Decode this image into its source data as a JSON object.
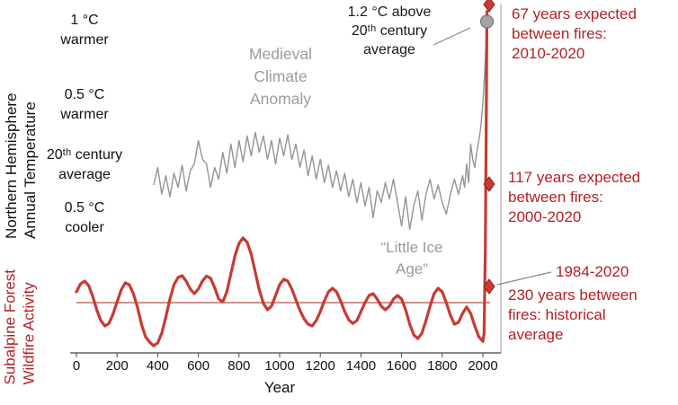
{
  "chart_data": {
    "type": "line",
    "title": "",
    "xlabel": "Year",
    "x_ticks": [
      0,
      200,
      400,
      600,
      800,
      1000,
      1200,
      1400,
      1600,
      1800,
      2000
    ],
    "x_range": [
      0,
      2035
    ],
    "colors": {
      "temperature_line": "#949494",
      "wildfire_line": "#c63b32",
      "red_text": "#b42025",
      "gray_text": "#9b9b9b",
      "axis": "#444444",
      "mean_line": "#b5524c"
    },
    "temperature": {
      "label": "Northern Hemisphere\nAnnual Temperature",
      "color": "#949494",
      "axis_labels": [
        {
          "text": "1 °C\nwarmer",
          "value": 1
        },
        {
          "text": "0.5 °C\nwarmer",
          "value": 0.5
        },
        {
          "text": "20ᵗʰ century\naverage",
          "value": 0
        },
        {
          "text": "0.5 °C\ncooler",
          "value": -0.5
        }
      ],
      "x": [
        380,
        400,
        420,
        440,
        460,
        480,
        500,
        520,
        540,
        560,
        580,
        600,
        620,
        640,
        660,
        680,
        700,
        720,
        740,
        760,
        780,
        800,
        820,
        840,
        860,
        880,
        900,
        920,
        940,
        960,
        980,
        1000,
        1020,
        1040,
        1060,
        1080,
        1100,
        1120,
        1140,
        1160,
        1180,
        1200,
        1220,
        1240,
        1260,
        1280,
        1300,
        1320,
        1340,
        1360,
        1380,
        1400,
        1420,
        1440,
        1460,
        1480,
        1500,
        1520,
        1540,
        1560,
        1580,
        1600,
        1620,
        1640,
        1660,
        1680,
        1700,
        1720,
        1740,
        1760,
        1780,
        1800,
        1820,
        1840,
        1860,
        1880,
        1900,
        1910,
        1920,
        1930,
        1940,
        1950,
        1960,
        1970,
        1980,
        1990,
        2000,
        2010,
        2020
      ],
      "y": [
        -0.2,
        -0.05,
        -0.28,
        -0.12,
        -0.3,
        -0.1,
        -0.22,
        -0.03,
        -0.25,
        -0.08,
        -0.02,
        0.18,
        0.02,
        -0.02,
        -0.22,
        -0.05,
        -0.15,
        0.08,
        -0.1,
        0.15,
        -0.05,
        0.18,
        0.0,
        0.22,
        0.05,
        0.25,
        0.08,
        0.22,
        0.02,
        0.18,
        -0.02,
        0.2,
        0.05,
        0.23,
        0.02,
        0.15,
        -0.05,
        0.1,
        -0.12,
        0.05,
        -0.15,
        0.02,
        -0.18,
        -0.03,
        -0.22,
        -0.08,
        -0.25,
        -0.1,
        -0.3,
        -0.15,
        -0.35,
        -0.18,
        -0.38,
        -0.22,
        -0.48,
        -0.25,
        -0.35,
        -0.18,
        -0.32,
        -0.15,
        -0.35,
        -0.55,
        -0.3,
        -0.58,
        -0.38,
        -0.25,
        -0.5,
        -0.28,
        -0.15,
        -0.32,
        -0.2,
        -0.35,
        -0.45,
        -0.28,
        -0.15,
        -0.28,
        -0.12,
        -0.22,
        -0.02,
        -0.18,
        0.15,
        0.02,
        -0.05,
        0.08,
        0.18,
        0.3,
        0.5,
        0.8,
        1.2
      ],
      "endpoint": {
        "year": 2020,
        "value": 1.2,
        "label": "1.2 °C above\n20ᵗʰ century\naverage"
      }
    },
    "wildfire": {
      "label": "Subalpine Forest\nWildfire Activity",
      "color": "#c63b32",
      "mean_line": {
        "value": 0,
        "meaning": "historical average fire activity"
      },
      "x": [
        0,
        20,
        40,
        60,
        80,
        100,
        120,
        140,
        160,
        180,
        200,
        220,
        240,
        260,
        280,
        300,
        320,
        340,
        360,
        380,
        400,
        420,
        440,
        460,
        480,
        500,
        520,
        540,
        560,
        580,
        600,
        620,
        640,
        660,
        680,
        700,
        720,
        740,
        760,
        780,
        800,
        820,
        840,
        860,
        880,
        900,
        920,
        940,
        960,
        980,
        1000,
        1020,
        1040,
        1060,
        1080,
        1100,
        1120,
        1140,
        1160,
        1180,
        1200,
        1220,
        1240,
        1260,
        1280,
        1300,
        1320,
        1340,
        1360,
        1380,
        1400,
        1420,
        1440,
        1460,
        1480,
        1500,
        1520,
        1540,
        1560,
        1580,
        1600,
        1620,
        1640,
        1660,
        1680,
        1700,
        1720,
        1740,
        1760,
        1780,
        1800,
        1820,
        1840,
        1860,
        1880,
        1900,
        1920,
        1940,
        1960,
        1980,
        2000,
        2006,
        2012,
        2016,
        2020
      ],
      "y": [
        0.3,
        0.52,
        0.6,
        0.48,
        0.18,
        -0.2,
        -0.5,
        -0.65,
        -0.58,
        -0.32,
        0.02,
        0.35,
        0.55,
        0.5,
        0.25,
        -0.12,
        -0.6,
        -0.95,
        -1.1,
        -1.2,
        -1.12,
        -0.85,
        -0.4,
        0.1,
        0.5,
        0.7,
        0.75,
        0.6,
        0.38,
        0.25,
        0.38,
        0.6,
        0.74,
        0.68,
        0.42,
        0.1,
        0.02,
        0.3,
        0.8,
        1.3,
        1.65,
        1.8,
        1.68,
        1.35,
        0.85,
        0.35,
        -0.02,
        -0.2,
        -0.1,
        0.2,
        0.5,
        0.65,
        0.6,
        0.38,
        0.08,
        -0.22,
        -0.45,
        -0.6,
        -0.65,
        -0.5,
        -0.25,
        0.05,
        0.3,
        0.4,
        0.3,
        0.05,
        -0.25,
        -0.48,
        -0.58,
        -0.5,
        -0.25,
        0.0,
        0.2,
        0.25,
        0.1,
        -0.1,
        -0.2,
        -0.1,
        0.1,
        0.2,
        0.1,
        -0.2,
        -0.6,
        -0.9,
        -1.0,
        -0.85,
        -0.5,
        -0.1,
        0.25,
        0.4,
        0.3,
        0.0,
        -0.35,
        -0.6,
        -0.55,
        -0.3,
        -0.12,
        -0.3,
        -0.65,
        -0.95,
        -1.08,
        -0.85,
        1.5,
        4.5,
        8.1
      ],
      "diamonds": [
        {
          "value": 8.3,
          "label": "67 years expected\nbetween fires:\n2010-2020"
        },
        {
          "value": 3.3,
          "label": "117 years expected\nbetween fires:\n2000-2020"
        },
        {
          "value": 0.45,
          "label": "230 years between\nfires: historical\naverage",
          "extra_label": "1984-2020"
        }
      ]
    },
    "annotations": [
      {
        "text": "Medieval\nClimate\nAnomaly",
        "color": "#9b9b9b"
      },
      {
        "text": "“Little Ice\nAge”",
        "color": "#9b9b9b"
      }
    ]
  }
}
